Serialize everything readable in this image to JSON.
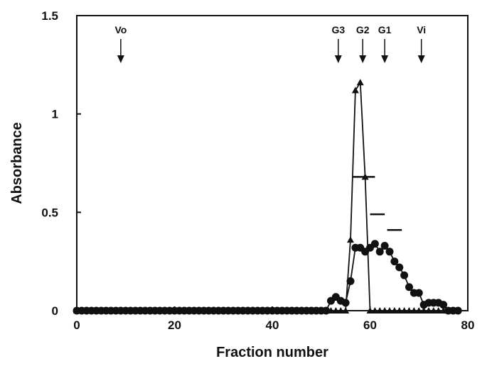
{
  "chart_data": {
    "type": "line",
    "xlabel": "Fraction number",
    "ylabel": "Absorbance",
    "xlim": [
      0,
      80
    ],
    "ylim": [
      0,
      1.5
    ],
    "x_ticks": [
      0,
      20,
      40,
      60,
      80
    ],
    "y_ticks": [
      0,
      0.5,
      1,
      1.5
    ],
    "y_tick_labels": [
      "0",
      "0.5",
      "1",
      "1.5"
    ],
    "grid": false,
    "legend": "none",
    "series": [
      {
        "marker": "circle",
        "color": "#111111",
        "points": [
          [
            0,
            0
          ],
          [
            1,
            0
          ],
          [
            2,
            0
          ],
          [
            3,
            0
          ],
          [
            4,
            0
          ],
          [
            5,
            0
          ],
          [
            6,
            0
          ],
          [
            7,
            0
          ],
          [
            8,
            0
          ],
          [
            9,
            0
          ],
          [
            10,
            0
          ],
          [
            11,
            0
          ],
          [
            12,
            0
          ],
          [
            13,
            0
          ],
          [
            14,
            0
          ],
          [
            15,
            0
          ],
          [
            16,
            0
          ],
          [
            17,
            0
          ],
          [
            18,
            0
          ],
          [
            19,
            0
          ],
          [
            20,
            0
          ],
          [
            21,
            0
          ],
          [
            22,
            0
          ],
          [
            23,
            0
          ],
          [
            24,
            0
          ],
          [
            25,
            0
          ],
          [
            26,
            0
          ],
          [
            27,
            0
          ],
          [
            28,
            0
          ],
          [
            29,
            0
          ],
          [
            30,
            0
          ],
          [
            31,
            0
          ],
          [
            32,
            0
          ],
          [
            33,
            0
          ],
          [
            34,
            0
          ],
          [
            35,
            0
          ],
          [
            36,
            0
          ],
          [
            37,
            0
          ],
          [
            38,
            0
          ],
          [
            39,
            0
          ],
          [
            40,
            0
          ],
          [
            41,
            0
          ],
          [
            42,
            0
          ],
          [
            43,
            0
          ],
          [
            44,
            0
          ],
          [
            45,
            0
          ],
          [
            46,
            0
          ],
          [
            47,
            0
          ],
          [
            48,
            0
          ],
          [
            49,
            0
          ],
          [
            50,
            0
          ],
          [
            51,
            0
          ],
          [
            52,
            0.05
          ],
          [
            53,
            0.07
          ],
          [
            54,
            0.05
          ],
          [
            55,
            0.04
          ],
          [
            56,
            0.15
          ],
          [
            57,
            0.32
          ],
          [
            58,
            0.32
          ],
          [
            59,
            0.3
          ],
          [
            60,
            0.32
          ],
          [
            61,
            0.34
          ],
          [
            62,
            0.3
          ],
          [
            63,
            0.33
          ],
          [
            64,
            0.3
          ],
          [
            65,
            0.25
          ],
          [
            66,
            0.22
          ],
          [
            67,
            0.18
          ],
          [
            68,
            0.12
          ],
          [
            69,
            0.09
          ],
          [
            70,
            0.09
          ],
          [
            71,
            0.03
          ],
          [
            72,
            0.04
          ],
          [
            73,
            0.04
          ],
          [
            74,
            0.04
          ],
          [
            75,
            0.03
          ],
          [
            76,
            0
          ],
          [
            77,
            0
          ],
          [
            78,
            0
          ]
        ]
      },
      {
        "marker": "triangle",
        "color": "#111111",
        "points": [
          [
            0,
            0
          ],
          [
            1,
            0
          ],
          [
            2,
            0
          ],
          [
            3,
            0
          ],
          [
            4,
            0
          ],
          [
            5,
            0
          ],
          [
            6,
            0
          ],
          [
            7,
            0
          ],
          [
            8,
            0
          ],
          [
            9,
            0
          ],
          [
            10,
            0
          ],
          [
            11,
            0
          ],
          [
            12,
            0
          ],
          [
            13,
            0
          ],
          [
            14,
            0
          ],
          [
            15,
            0
          ],
          [
            16,
            0
          ],
          [
            17,
            0
          ],
          [
            18,
            0
          ],
          [
            19,
            0
          ],
          [
            20,
            0
          ],
          [
            21,
            0
          ],
          [
            22,
            0
          ],
          [
            23,
            0
          ],
          [
            24,
            0
          ],
          [
            25,
            0
          ],
          [
            26,
            0
          ],
          [
            27,
            0
          ],
          [
            28,
            0
          ],
          [
            29,
            0
          ],
          [
            30,
            0
          ],
          [
            31,
            0
          ],
          [
            32,
            0
          ],
          [
            33,
            0
          ],
          [
            34,
            0
          ],
          [
            35,
            0
          ],
          [
            36,
            0
          ],
          [
            37,
            0
          ],
          [
            38,
            0
          ],
          [
            39,
            0
          ],
          [
            40,
            0
          ],
          [
            41,
            0
          ],
          [
            42,
            0
          ],
          [
            43,
            0
          ],
          [
            44,
            0
          ],
          [
            45,
            0
          ],
          [
            46,
            0
          ],
          [
            47,
            0
          ],
          [
            48,
            0
          ],
          [
            49,
            0
          ],
          [
            50,
            0
          ],
          [
            51,
            0
          ],
          [
            52,
            0
          ],
          [
            53,
            0
          ],
          [
            54,
            0
          ],
          [
            55,
            0
          ],
          [
            56,
            0.36
          ],
          [
            57,
            1.12
          ],
          [
            58,
            1.16
          ],
          [
            59,
            0.68
          ],
          [
            60,
            0
          ],
          [
            61,
            0
          ],
          [
            62,
            0
          ],
          [
            63,
            0
          ],
          [
            64,
            0
          ],
          [
            65,
            0
          ],
          [
            66,
            0
          ],
          [
            67,
            0
          ],
          [
            68,
            0
          ],
          [
            69,
            0
          ],
          [
            70,
            0
          ],
          [
            71,
            0
          ],
          [
            72,
            0
          ],
          [
            73,
            0
          ],
          [
            74,
            0
          ],
          [
            75,
            0
          ]
        ]
      }
    ],
    "fraction_markers": [
      {
        "label": "Vo",
        "x": 9
      },
      {
        "label": "G3",
        "x": 53.5
      },
      {
        "label": "G2",
        "x": 58.5
      },
      {
        "label": "G1",
        "x": 63
      },
      {
        "label": "Vi",
        "x": 70.5
      }
    ],
    "horizontal_bars": [
      {
        "x_start": 56.5,
        "x_end": 61,
        "y": 0.68
      },
      {
        "x_start": 60,
        "x_end": 63,
        "y": 0.49
      },
      {
        "x_start": 63.5,
        "x_end": 66.5,
        "y": 0.41
      }
    ]
  }
}
